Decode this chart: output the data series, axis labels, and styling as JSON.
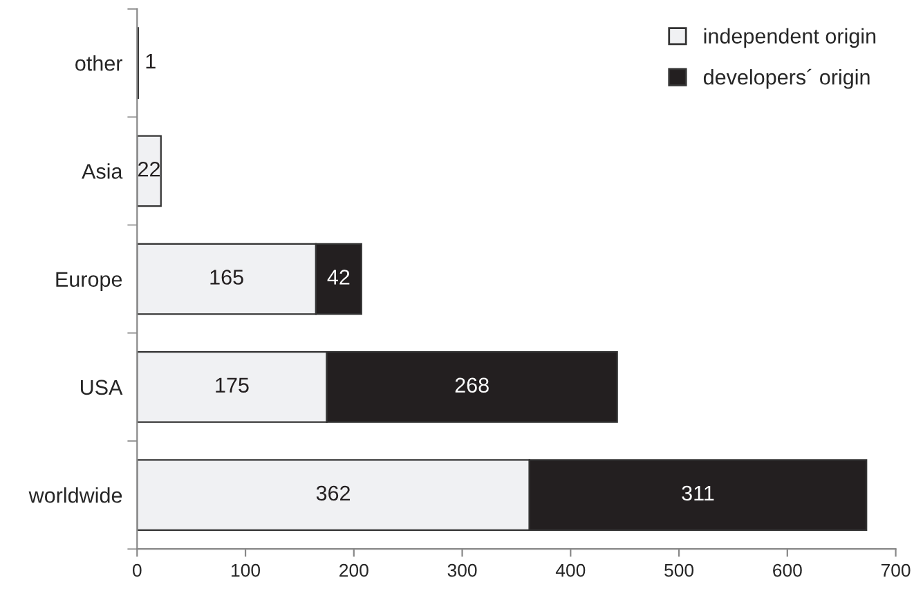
{
  "chart_data": {
    "type": "bar",
    "orientation": "horizontal",
    "stacked": true,
    "categories": [
      "other",
      "Asia",
      "Europe",
      "USA",
      "worldwide"
    ],
    "series": [
      {
        "name": "independent origin",
        "color": "#f0f1f3",
        "values": [
          1,
          22,
          165,
          175,
          362
        ]
      },
      {
        "name": "developers´ origin",
        "color": "#231f20",
        "values": [
          null,
          null,
          42,
          268,
          311
        ]
      }
    ],
    "xlim": [
      0,
      700
    ],
    "xticks": [
      0,
      100,
      200,
      300,
      400,
      500,
      600,
      700
    ],
    "data_labels": true,
    "legend": "top right",
    "grid": false
  }
}
